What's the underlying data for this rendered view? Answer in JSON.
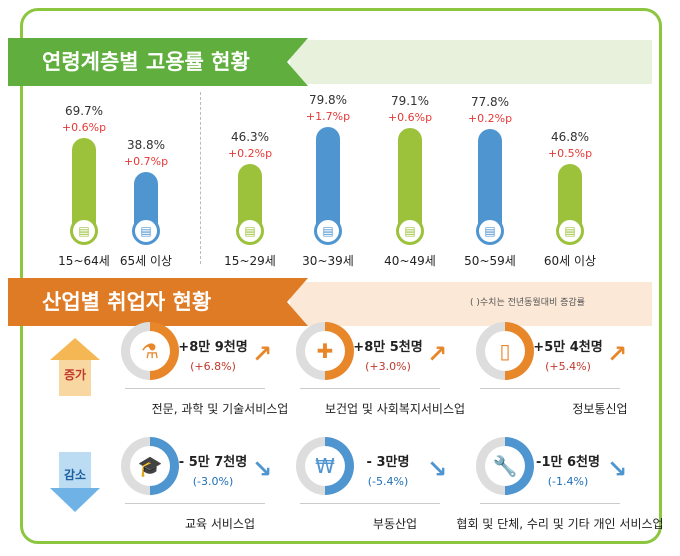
{
  "age_section": {
    "title": "연령계층별 고용률 현황",
    "color": "#6ab344",
    "groups": [
      {
        "label": "15~64세",
        "rate": "69.7%",
        "change": "+0.6%p",
        "value": 69.7,
        "color": "#9cc13a"
      },
      {
        "label": "65세 이상",
        "rate": "38.8%",
        "change": "+0.7%p",
        "value": 38.8,
        "color": "#4f95d0"
      },
      {
        "label": "15~29세",
        "rate": "46.3%",
        "change": "+0.2%p",
        "value": 46.3,
        "color": "#9cc13a"
      },
      {
        "label": "30~39세",
        "rate": "79.8%",
        "change": "+1.7%p",
        "value": 79.8,
        "color": "#4f95d0"
      },
      {
        "label": "40~49세",
        "rate": "79.1%",
        "change": "+0.6%p",
        "value": 79.1,
        "color": "#9cc13a"
      },
      {
        "label": "50~59세",
        "rate": "77.8%",
        "change": "+0.2%p",
        "value": 77.8,
        "color": "#4f95d0"
      },
      {
        "label": "60세 이상",
        "rate": "46.8%",
        "change": "+0.5%p",
        "value": 46.8,
        "color": "#9cc13a"
      }
    ]
  },
  "industry_section": {
    "title": "산업별 취업자 현황",
    "note": "( )수치는 전년동월대비 증감률",
    "color": "#e07b25",
    "increase": {
      "label": "증가",
      "items": [
        {
          "name": "전문, 과학 및 기술서비스업",
          "count": "+8만 9천명",
          "pct": "(+6.8%)",
          "icon": "flask-icon"
        },
        {
          "name": "보건업 및 사회복지서비스업",
          "count": "+8만 5천명",
          "pct": "(+3.0%)",
          "icon": "medical-kit-icon"
        },
        {
          "name": "정보통신업",
          "count": "+5만 4천명",
          "pct": "(+5.4%)",
          "icon": "phone-icon"
        }
      ]
    },
    "decrease": {
      "label": "감소",
      "items": [
        {
          "name": "교육 서비스업",
          "count": "- 5만 7천명",
          "pct": "(-3.0%)",
          "icon": "graduation-cap-icon"
        },
        {
          "name": "부동산업",
          "count": "- 3만명",
          "pct": "(-5.4%)",
          "icon": "house-won-icon"
        },
        {
          "name": "협회 및 단체, 수리 및 기타 개인 서비스업",
          "count": "-1만 6천명",
          "pct": "(-1.4%)",
          "icon": "wrench-icon"
        }
      ]
    }
  }
}
